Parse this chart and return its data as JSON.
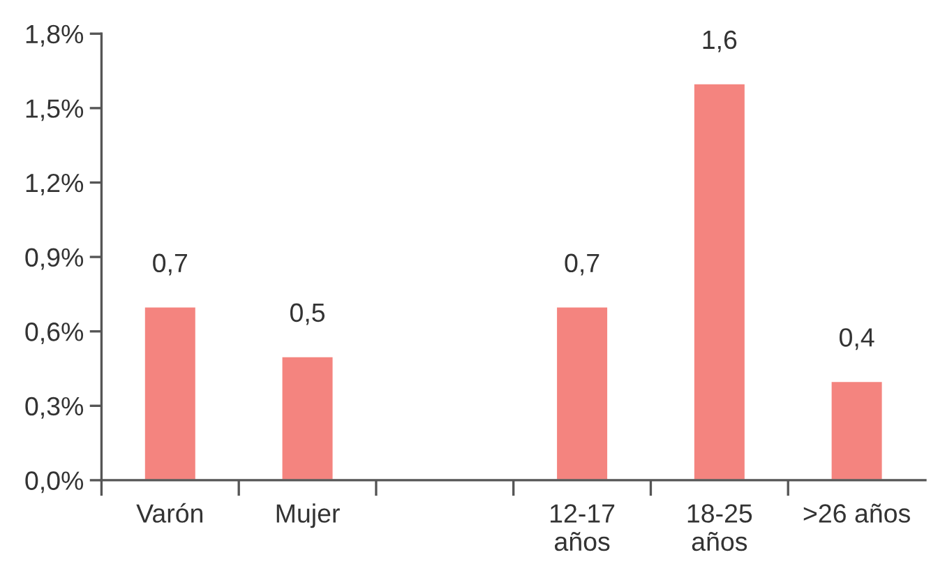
{
  "chart_data": {
    "type": "bar",
    "categories": [
      "Varón",
      "Mujer",
      null,
      "12-17\naños",
      "18-25\naños",
      ">26 años"
    ],
    "values": [
      0.7,
      0.5,
      null,
      0.7,
      1.6,
      0.4
    ],
    "color": "#f4847f",
    "value_labels": [
      "0,7",
      "0,5",
      null,
      "0,7",
      "1,6",
      "0,4"
    ],
    "ylim": [
      0,
      1.8
    ],
    "yticks": [
      {
        "value": 0,
        "label": "0,0%"
      },
      {
        "value": 0.3,
        "label": "0,3%"
      },
      {
        "value": 0.6,
        "label": "0,6%"
      },
      {
        "value": 0.9,
        "label": "0,9%"
      },
      {
        "value": 1.2,
        "label": "1,2%"
      },
      {
        "value": 1.5,
        "label": "1,5%"
      },
      {
        "value": 1.8,
        "label": "1,8%"
      }
    ]
  }
}
